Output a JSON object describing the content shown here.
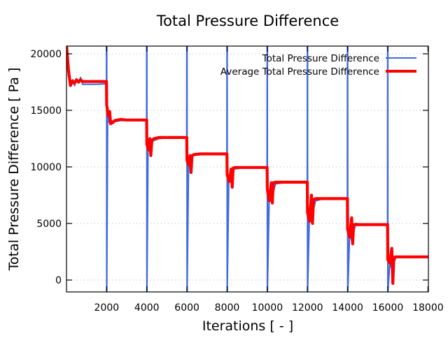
{
  "chart_data": {
    "type": "line",
    "title": "Total Pressure Difference",
    "xlabel": "Iterations [ - ]",
    "ylabel": "Total Pressure Difference [ Pa ]",
    "xlim": [
      0,
      18000
    ],
    "ylim": [
      -1000,
      20800
    ],
    "xticks": [
      2000,
      4000,
      6000,
      8000,
      10000,
      12000,
      14000,
      16000,
      18000
    ],
    "xtick_labels": [
      "2000",
      "4000",
      "6000",
      "8000",
      "10000",
      "12000",
      "14000",
      "16000",
      "18000"
    ],
    "yticks": [
      0,
      5000,
      10000,
      15000,
      20000
    ],
    "ytick_labels": [
      "0",
      "5000",
      "10000",
      "15000",
      "20000"
    ],
    "grid": true,
    "legend_position": "top-right",
    "series": [
      {
        "name": "Total Pressure Difference",
        "color": "#4169e1",
        "x": [
          0,
          100,
          200,
          300,
          400,
          500,
          600,
          700,
          800,
          1000,
          1500,
          1990,
          2000,
          2005,
          2050,
          2100,
          2200,
          2400,
          2700,
          3000,
          3500,
          3990,
          4000,
          4005,
          4060,
          4150,
          4300,
          4600,
          5000,
          5990,
          6000,
          6005,
          6080,
          6150,
          6300,
          6700,
          7000,
          7990,
          8000,
          8005,
          8080,
          8150,
          8300,
          8700,
          9990,
          10000,
          10005,
          10100,
          10200,
          10400,
          10800,
          11990,
          12000,
          12005,
          12100,
          12200,
          12400,
          12800,
          13990,
          14000,
          14005,
          14100,
          14200,
          14400,
          14800,
          15990,
          16000,
          16005,
          16100,
          16200,
          16400,
          16800,
          18000
        ],
        "y": [
          20500,
          18000,
          17300,
          17700,
          17200,
          17800,
          17400,
          17900,
          17300,
          17300,
          17300,
          17350,
          30000,
          -1000,
          15000,
          14000,
          13800,
          14000,
          14100,
          14100,
          14100,
          14100,
          30000,
          -1000,
          12100,
          11500,
          12300,
          12500,
          12600,
          12600,
          30000,
          -1000,
          10600,
          10000,
          11000,
          11100,
          11150,
          11150,
          30000,
          -1000,
          9000,
          8800,
          9800,
          9900,
          9900,
          30000,
          -1000,
          7900,
          7000,
          8500,
          8600,
          8650,
          30000,
          -1000,
          6200,
          5500,
          7000,
          7200,
          7200,
          30000,
          -1000,
          4200,
          3500,
          5000,
          4900,
          4900,
          30000,
          -1000,
          1500,
          1000,
          2000,
          2000,
          2000
        ]
      },
      {
        "name": "Average Total Pressure Difference",
        "color": "#ff0000",
        "x": [
          0,
          100,
          200,
          300,
          400,
          500,
          600,
          700,
          800,
          1000,
          1500,
          1990,
          2000,
          2080,
          2150,
          2200,
          2250,
          2300,
          2400,
          2700,
          3000,
          3500,
          3990,
          4000,
          4080,
          4150,
          4200,
          4250,
          4350,
          4600,
          5000,
          5990,
          6000,
          6080,
          6150,
          6200,
          6250,
          6350,
          6700,
          7000,
          7990,
          8000,
          8100,
          8200,
          8250,
          8300,
          8400,
          8700,
          9990,
          10000,
          10100,
          10200,
          10250,
          10300,
          10400,
          10800,
          11990,
          12000,
          12100,
          12200,
          12250,
          12300,
          12400,
          12800,
          13990,
          14000,
          14100,
          14200,
          14250,
          14300,
          14400,
          14800,
          15990,
          16000,
          16100,
          16200,
          16250,
          16300,
          16400,
          16800,
          18000
        ],
        "y": [
          20800,
          18500,
          17200,
          17600,
          17400,
          17700,
          17500,
          17700,
          17550,
          17550,
          17550,
          17550,
          15500,
          14500,
          14900,
          13800,
          14000,
          13900,
          14100,
          14200,
          14150,
          14150,
          14150,
          12000,
          11500,
          12500,
          11000,
          12300,
          12500,
          12600,
          12600,
          12600,
          10600,
          10200,
          11000,
          9500,
          11000,
          11100,
          11150,
          11150,
          11150,
          9300,
          8700,
          9800,
          8200,
          9900,
          9950,
          9950,
          9950,
          8000,
          7000,
          8600,
          6800,
          8600,
          8650,
          8650,
          8650,
          6000,
          5200,
          7500,
          5000,
          7100,
          7200,
          7200,
          7200,
          4500,
          3800,
          5500,
          3200,
          4900,
          4900,
          4900,
          4900,
          1800,
          1500,
          2800,
          -300,
          2000,
          2050,
          2050,
          2050
        ]
      }
    ]
  }
}
